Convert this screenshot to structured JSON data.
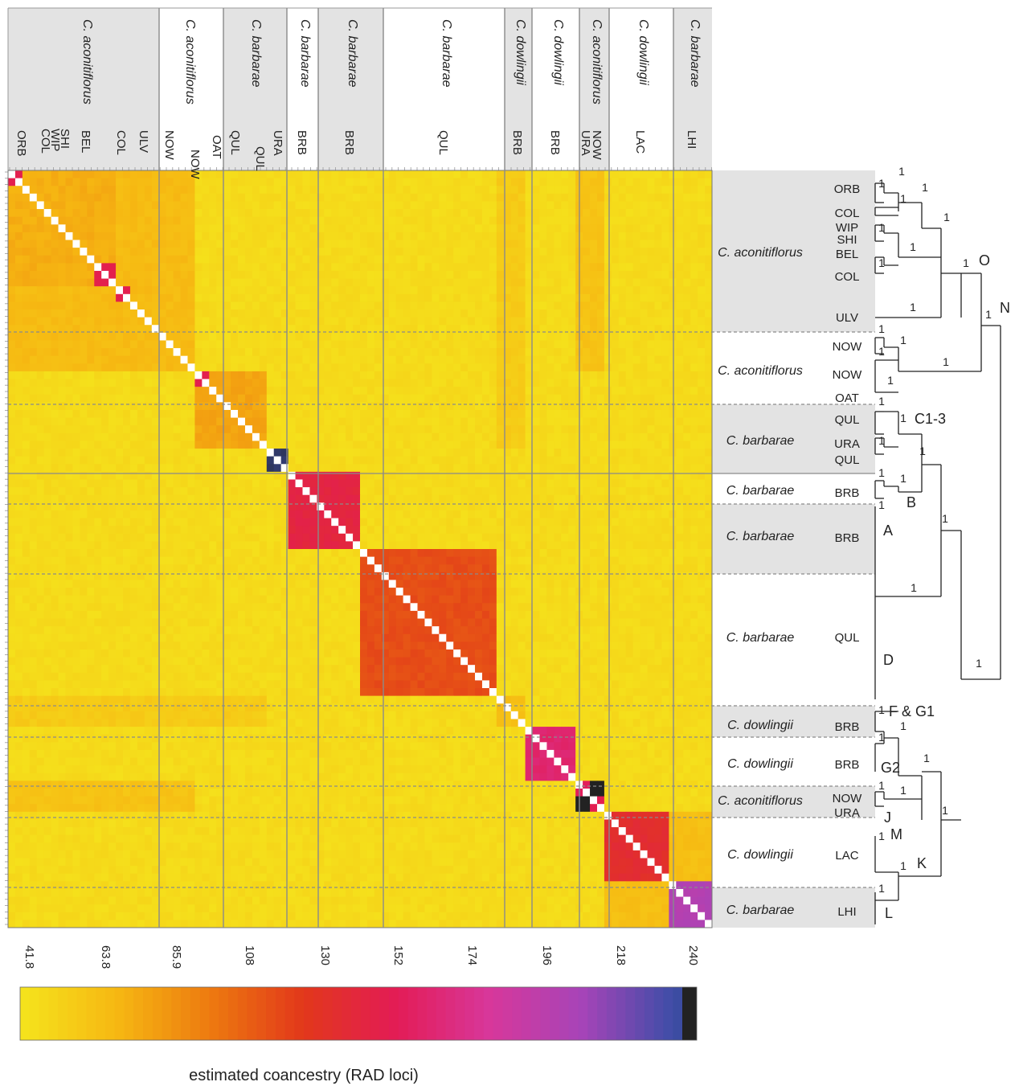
{
  "chart_data": {
    "type": "heatmap",
    "legend_title": "estimated coancestry (RAD loci)",
    "color_scale": {
      "ticks": [
        "41.8",
        "63.8",
        "85.9",
        "108",
        "130",
        "152",
        "174",
        "196",
        "218",
        "240"
      ],
      "range": [
        41.8,
        240
      ],
      "colors": [
        "#f5e21c",
        "#f6b712",
        "#ed7a10",
        "#e2381a",
        "#e31c55",
        "#d8379a",
        "#a744b8",
        "#3d4ea7",
        "#222222"
      ]
    },
    "columns": [
      {
        "species": "C. aconitiflorus",
        "pops": [
          "ORB",
          "COL",
          "WIP",
          "SHI",
          "BEL",
          "COL",
          "ULV"
        ],
        "shaded": true
      },
      {
        "species": "C. aconitiflorus",
        "pops": [
          "NOW",
          "NOW",
          "OAT"
        ],
        "shaded": false
      },
      {
        "species": "C. barbarae",
        "pops": [
          "QUL",
          "QUL",
          "URA"
        ],
        "shaded": true
      },
      {
        "species": "C. barbarae",
        "pops": [
          "BRB"
        ],
        "shaded": false
      },
      {
        "species": "C. barbarae",
        "pops": [
          "BRB"
        ],
        "shaded": true
      },
      {
        "species": "C. barbarae",
        "pops": [
          "QUL"
        ],
        "shaded": false
      },
      {
        "species": "C. dowlingii",
        "pops": [
          "BRB"
        ],
        "shaded": true
      },
      {
        "species": "C. dowlingii",
        "pops": [
          "BRB"
        ],
        "shaded": false
      },
      {
        "species": "C. aconitiflorus",
        "pops": [
          "URA",
          "NOW"
        ],
        "shaded": true
      },
      {
        "species": "C. dowlingii",
        "pops": [
          "LAC"
        ],
        "shaded": false
      },
      {
        "species": "C. barbarae",
        "pops": [
          "LHI"
        ],
        "shaded": true
      }
    ],
    "rows": [
      {
        "species": "C. aconitiflorus",
        "pops": [
          "ORB",
          "COL",
          "WIP",
          "SHI",
          "BEL",
          "COL",
          "ULV"
        ],
        "shaded": true
      },
      {
        "species": "C. aconitiflorus",
        "pops": [
          "NOW",
          "NOW",
          "OAT"
        ],
        "shaded": false
      },
      {
        "species": "C. barbarae",
        "pops": [
          "QUL",
          "URA",
          "QUL"
        ],
        "shaded": true
      },
      {
        "species": "C. barbarae",
        "pops": [
          "BRB"
        ],
        "shaded": false
      },
      {
        "species": "C. barbarae",
        "pops": [
          "BRB"
        ],
        "shaded": true
      },
      {
        "species": "C. barbarae",
        "pops": [
          "QUL"
        ],
        "shaded": false
      },
      {
        "species": "C. dowlingii",
        "pops": [
          "BRB"
        ],
        "shaded": true
      },
      {
        "species": "C. dowlingii",
        "pops": [
          "BRB"
        ],
        "shaded": false
      },
      {
        "species": "C. aconitiflorus",
        "pops": [
          "NOW",
          "URA"
        ],
        "shaded": true
      },
      {
        "species": "C. dowlingii",
        "pops": [
          "LAC"
        ],
        "shaded": false
      },
      {
        "species": "C. barbarae",
        "pops": [
          "LHI"
        ],
        "shaded": true
      }
    ],
    "blocks": [
      {
        "sizes": [
          2,
          1,
          1,
          1,
          1,
          1,
          1,
          1,
          1,
          1,
          1,
          3
        ],
        "within": 70
      },
      {
        "sizes": [
          2,
          1,
          1,
          1,
          1,
          1,
          1,
          1,
          1,
          1
        ],
        "within": 64
      },
      {
        "sizes": [
          2,
          1,
          1,
          1,
          1,
          1,
          1,
          1,
          1
        ],
        "within": 74
      },
      {
        "sizes": [
          3
        ],
        "within": 226
      },
      {
        "sizes": [
          10
        ],
        "within": 133
      },
      {
        "sizes": [
          19
        ],
        "within": 108
      },
      {
        "sizes": [
          4
        ],
        "within": 62
      },
      {
        "sizes": [
          7
        ],
        "within": 150
      },
      {
        "sizes": [
          2,
          2
        ],
        "within": 244
      },
      {
        "sizes": [
          9
        ],
        "within": 125
      },
      {
        "sizes": [
          6
        ],
        "within": 185
      }
    ],
    "clade_labels": [
      "O",
      "N",
      "C1-3",
      "B",
      "A",
      "D",
      "F & G1",
      "G2",
      "J",
      "M",
      "K",
      "L"
    ],
    "support_label": "1"
  }
}
